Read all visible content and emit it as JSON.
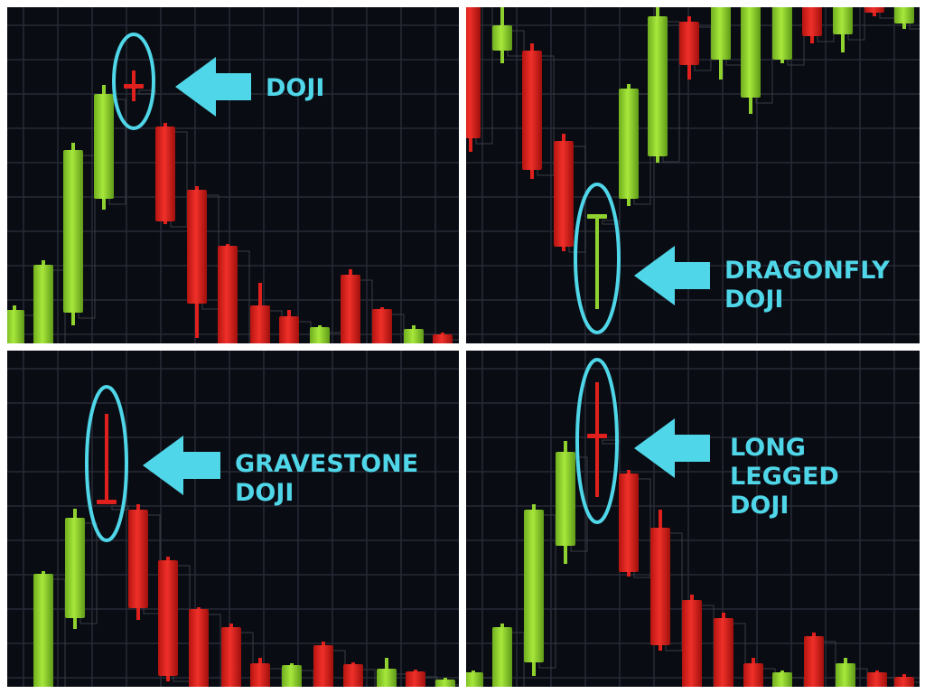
{
  "panels": [
    {
      "label": [
        "DOJI"
      ]
    },
    {
      "label": [
        "DRAGONFLY",
        "DOJI"
      ]
    },
    {
      "label": [
        "GRAVESTONE",
        "DOJI"
      ]
    },
    {
      "label": [
        "LONG",
        "LEGGED",
        "DOJI"
      ]
    }
  ]
}
